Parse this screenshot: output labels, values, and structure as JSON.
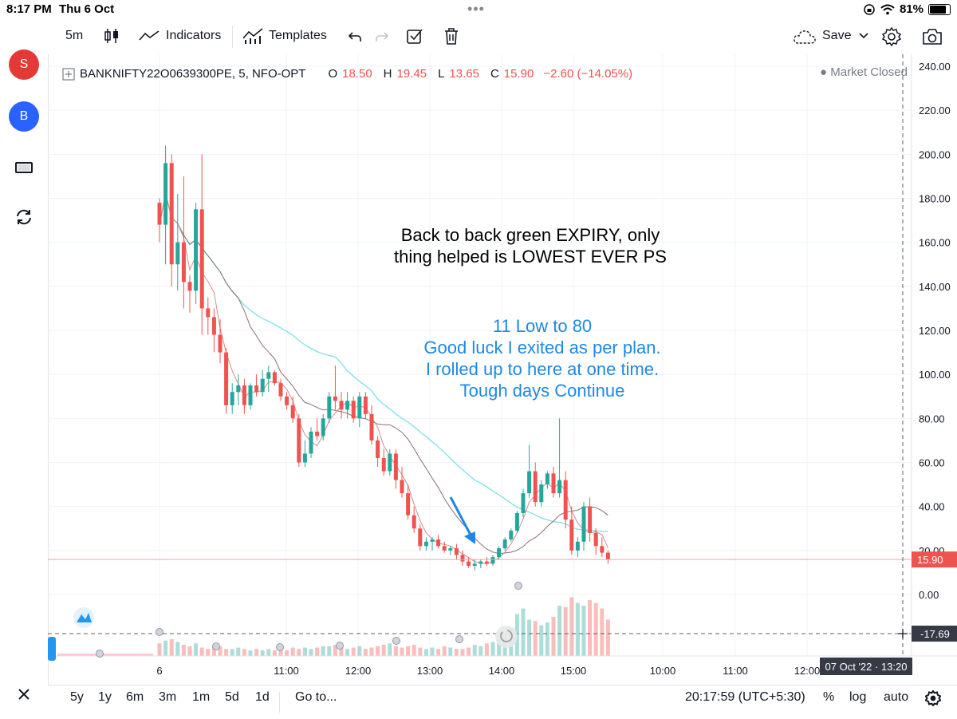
{
  "status_bar": {
    "time": "8:17 PM",
    "date": "Thu 6 Oct",
    "battery": "81%"
  },
  "sidebar": {
    "items": [
      {
        "label": "S",
        "icon": "sell-circle-icon",
        "color": "#e53935"
      },
      {
        "label": "B",
        "icon": "buy-circle-icon",
        "color": "#2962ff"
      },
      {
        "icon": "rectangle-icon"
      },
      {
        "icon": "refresh-icon"
      },
      {
        "icon": "close-icon"
      }
    ]
  },
  "toolbar": {
    "interval": "5m",
    "indicators_label": "Indicators",
    "templates_label": "Templates",
    "save_label": "Save"
  },
  "legend": {
    "symbol": "BANKNIFTY22O0639300PE, 5, NFO-OPT",
    "o_label": "O",
    "o": "18.50",
    "h_label": "H",
    "h": "19.45",
    "l_label": "L",
    "l": "13.65",
    "c_label": "C",
    "c": "15.90",
    "change": "−2.60 (−14.05%)",
    "market_status": "Market Closed"
  },
  "annotations": {
    "black_line1": "Back to back green EXPIRY, only",
    "black_line2": "thing helped is LOWEST EVER PS",
    "blue_line1": "11 Low to 80",
    "blue_line2": "Good luck I exited as per plan.",
    "blue_line3": "I rolled up to here at one time.",
    "blue_line4": "Tough days Continue"
  },
  "price_axis": {
    "labels": [
      "240.00",
      "220.00",
      "200.00",
      "180.00",
      "160.00",
      "140.00",
      "120.00",
      "100.00",
      "80.00",
      "60.00",
      "40.00",
      "20.00",
      "0.00"
    ],
    "last_price": "15.90",
    "crosshair_price": "-17.69"
  },
  "time_axis": {
    "labels": [
      "6",
      "11:00",
      "12:00",
      "13:00",
      "14:00",
      "15:00",
      "10:00",
      "11:00",
      "12:00"
    ],
    "crosshair_time": "07 Oct '22 · 13:20"
  },
  "bottom_bar": {
    "ranges": [
      "5y",
      "1y",
      "6m",
      "3m",
      "1m",
      "5d",
      "1d"
    ],
    "goto_label": "Go to...",
    "clock": "20:17:59 (UTC+5:30)",
    "percent_label": "%",
    "log_label": "log",
    "auto_label": "auto"
  },
  "colors": {
    "up": "#26a69a",
    "down": "#ef5350",
    "accent_text": "#1e88e5"
  },
  "chart_data": {
    "type": "candlestick",
    "ylim": [
      0,
      240
    ],
    "candles": [
      [
        178,
        180,
        160,
        168
      ],
      [
        168,
        204,
        150,
        196
      ],
      [
        196,
        200,
        140,
        150
      ],
      [
        150,
        182,
        138,
        160
      ],
      [
        160,
        190,
        130,
        142
      ],
      [
        142,
        145,
        128,
        138
      ],
      [
        138,
        178,
        132,
        175
      ],
      [
        175,
        200,
        118,
        130
      ],
      [
        130,
        135,
        118,
        126
      ],
      [
        126,
        130,
        110,
        118
      ],
      [
        118,
        125,
        105,
        110
      ],
      [
        110,
        112,
        82,
        86
      ],
      [
        86,
        96,
        82,
        92
      ],
      [
        92,
        100,
        86,
        95
      ],
      [
        95,
        98,
        82,
        86
      ],
      [
        86,
        96,
        84,
        95
      ],
      [
        95,
        100,
        90,
        92
      ],
      [
        92,
        102,
        90,
        98
      ],
      [
        98,
        104,
        92,
        101
      ],
      [
        101,
        102,
        95,
        96
      ],
      [
        96,
        98,
        88,
        90
      ],
      [
        90,
        92,
        84,
        86
      ],
      [
        86,
        90,
        78,
        80
      ],
      [
        80,
        82,
        58,
        60
      ],
      [
        60,
        70,
        58,
        64
      ],
      [
        64,
        76,
        62,
        74
      ],
      [
        74,
        80,
        70,
        72
      ],
      [
        72,
        82,
        70,
        80
      ],
      [
        80,
        92,
        78,
        90
      ],
      [
        90,
        104,
        84,
        88
      ],
      [
        88,
        92,
        80,
        84
      ],
      [
        84,
        92,
        80,
        88
      ],
      [
        88,
        90,
        78,
        80
      ],
      [
        80,
        92,
        76,
        90
      ],
      [
        90,
        92,
        80,
        82
      ],
      [
        82,
        86,
        68,
        70
      ],
      [
        70,
        72,
        58,
        62
      ],
      [
        62,
        66,
        54,
        56
      ],
      [
        56,
        66,
        54,
        64
      ],
      [
        64,
        66,
        48,
        52
      ],
      [
        52,
        58,
        44,
        46
      ],
      [
        46,
        50,
        34,
        36
      ],
      [
        36,
        40,
        28,
        30
      ],
      [
        30,
        32,
        20,
        22
      ],
      [
        22,
        26,
        20,
        24
      ],
      [
        24,
        26,
        20,
        25
      ],
      [
        25,
        27,
        21,
        22
      ],
      [
        22,
        24,
        19,
        20
      ],
      [
        20,
        22,
        18,
        21
      ],
      [
        21,
        23,
        16,
        18
      ],
      [
        18,
        20,
        13,
        15
      ],
      [
        15,
        17,
        12,
        13
      ],
      [
        13,
        16,
        11,
        14
      ],
      [
        14,
        16,
        12,
        15
      ],
      [
        15,
        17,
        13,
        14
      ],
      [
        14,
        18,
        13,
        17
      ],
      [
        17,
        22,
        16,
        21
      ],
      [
        21,
        26,
        20,
        25
      ],
      [
        25,
        30,
        24,
        29
      ],
      [
        29,
        38,
        28,
        37
      ],
      [
        37,
        48,
        35,
        46
      ],
      [
        46,
        68,
        44,
        56
      ],
      [
        56,
        60,
        40,
        42
      ],
      [
        42,
        52,
        40,
        50
      ],
      [
        50,
        56,
        48,
        55
      ],
      [
        55,
        58,
        44,
        46
      ],
      [
        46,
        80,
        44,
        52
      ],
      [
        52,
        56,
        30,
        34
      ],
      [
        34,
        40,
        18,
        20
      ],
      [
        20,
        26,
        17,
        24
      ],
      [
        24,
        42,
        20,
        40
      ],
      [
        40,
        44,
        24,
        28
      ],
      [
        28,
        30,
        18,
        22
      ],
      [
        22,
        26,
        17,
        19
      ],
      [
        19,
        20,
        14,
        16
      ]
    ],
    "volume": [
      9,
      11,
      12,
      10,
      8,
      7,
      9,
      6,
      5,
      6,
      7,
      5,
      5,
      6,
      5,
      4,
      5,
      4,
      5,
      4,
      5,
      4,
      6,
      5,
      6,
      5,
      6,
      7,
      7,
      8,
      6,
      5,
      6,
      7,
      5,
      6,
      7,
      8,
      9,
      7,
      6,
      7,
      8,
      6,
      5,
      6,
      5,
      7,
      6,
      5,
      5,
      6,
      8,
      7,
      9,
      10,
      12,
      16,
      20,
      30,
      34,
      26,
      25,
      22,
      24,
      28,
      36,
      35,
      42,
      38,
      36,
      40,
      38,
      34,
      26
    ]
  }
}
